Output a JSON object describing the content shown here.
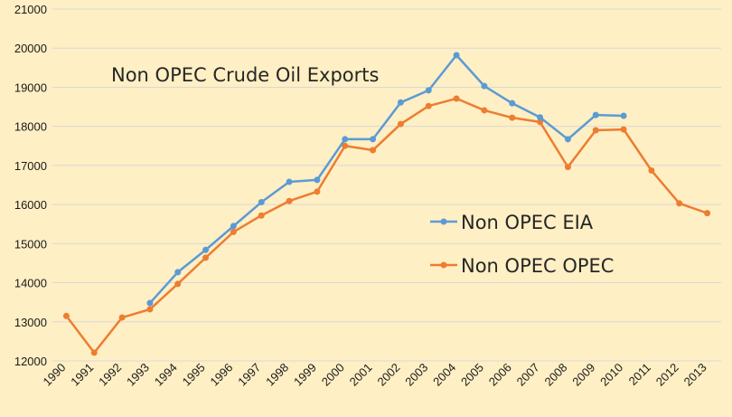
{
  "chart_data": {
    "type": "line",
    "title": "Non OPEC Crude Oil Exports",
    "xlabel": "",
    "ylabel": "",
    "categories": [
      "1990",
      "1991",
      "1992",
      "1993",
      "1994",
      "1995",
      "1996",
      "1997",
      "1998",
      "1999",
      "2000",
      "2001",
      "2002",
      "2003",
      "2004",
      "2005",
      "2006",
      "2007",
      "2008",
      "2009",
      "2010",
      "2011",
      "2012",
      "2013"
    ],
    "ylim": [
      12000,
      21000
    ],
    "yticks": [
      12000,
      13000,
      14000,
      15000,
      16000,
      17000,
      18000,
      19000,
      20000,
      21000
    ],
    "grid": true,
    "legend_position": "right",
    "series": [
      {
        "name": "Non OPEC EIA",
        "color": "#5b9bd5",
        "values": [
          null,
          null,
          null,
          13480,
          14270,
          14840,
          15450,
          16060,
          16580,
          16630,
          17670,
          17670,
          18610,
          18920,
          19820,
          19030,
          18590,
          18230,
          17670,
          18290,
          18270,
          null,
          null,
          null
        ]
      },
      {
        "name": "Non OPEC OPEC",
        "color": "#ed7d31",
        "values": [
          13150,
          12210,
          13110,
          13320,
          13970,
          14640,
          15300,
          15720,
          16090,
          16330,
          17500,
          17390,
          18060,
          18520,
          18710,
          18410,
          18220,
          18110,
          16960,
          17900,
          17920,
          16870,
          16030,
          15780
        ]
      }
    ]
  }
}
